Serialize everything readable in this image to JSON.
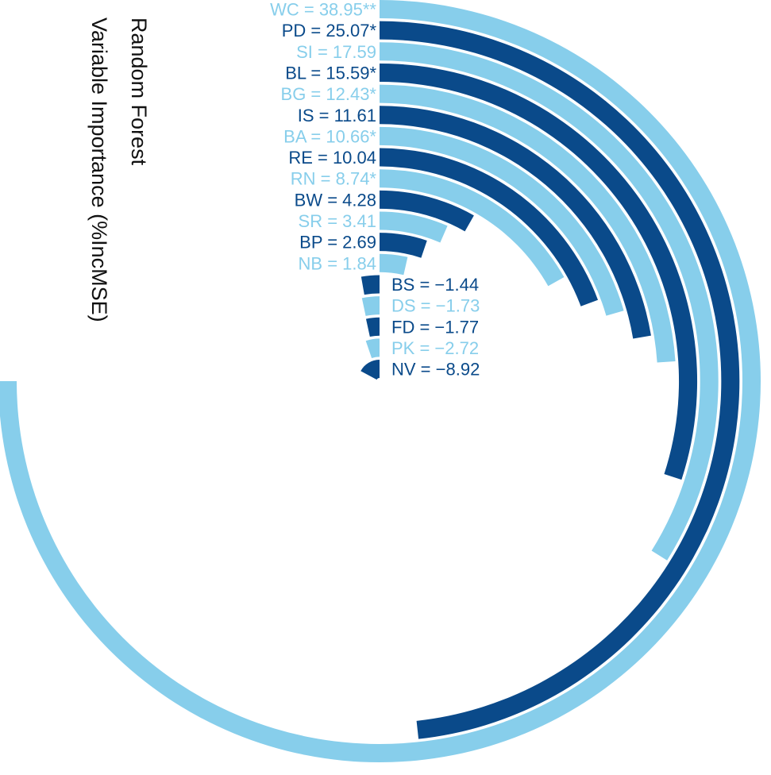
{
  "chart_data": {
    "type": "radial-bar",
    "title_lines": [
      "Random Forest",
      "Variable Importance (%IncMSE)"
    ],
    "unit": "%IncMSE",
    "colors": {
      "dark": "#0a4a8a",
      "light": "#87ceeb"
    },
    "bars": [
      {
        "name": "WC",
        "value": 38.95,
        "label": "WC = 38.95**",
        "color": "light"
      },
      {
        "name": "PD",
        "value": 25.07,
        "label": "PD = 25.07*",
        "color": "dark"
      },
      {
        "name": "SI",
        "value": 17.59,
        "label": "SI = 17.59",
        "color": "light"
      },
      {
        "name": "BL",
        "value": 15.59,
        "label": "BL = 15.59*",
        "color": "dark"
      },
      {
        "name": "BG",
        "value": 12.43,
        "label": "BG = 12.43*",
        "color": "light"
      },
      {
        "name": "IS",
        "value": 11.61,
        "label": "IS = 11.61",
        "color": "dark"
      },
      {
        "name": "BA",
        "value": 10.66,
        "label": "BA = 10.66*",
        "color": "light"
      },
      {
        "name": "RE",
        "value": 10.04,
        "label": "RE = 10.04",
        "color": "dark"
      },
      {
        "name": "RN",
        "value": 8.74,
        "label": "RN = 8.74*",
        "color": "light"
      },
      {
        "name": "BW",
        "value": 4.28,
        "label": "BW = 4.28",
        "color": "dark"
      },
      {
        "name": "SR",
        "value": 3.41,
        "label": "SR = 3.41",
        "color": "light"
      },
      {
        "name": "BP",
        "value": 2.69,
        "label": "BP = 2.69",
        "color": "dark"
      },
      {
        "name": "NB",
        "value": 1.84,
        "label": "NB = 1.84",
        "color": "light"
      },
      {
        "name": "BS",
        "value": -1.44,
        "label": "BS = −1.44",
        "color": "dark"
      },
      {
        "name": "DS",
        "value": -1.73,
        "label": "DS = −1.73",
        "color": "light"
      },
      {
        "name": "FD",
        "value": -1.77,
        "label": "FD = −1.77",
        "color": "dark"
      },
      {
        "name": "PK",
        "value": -2.72,
        "label": "PK = −2.72",
        "color": "light"
      },
      {
        "name": "NV",
        "value": -8.92,
        "label": "NV = −8.92",
        "color": "dark"
      }
    ]
  }
}
